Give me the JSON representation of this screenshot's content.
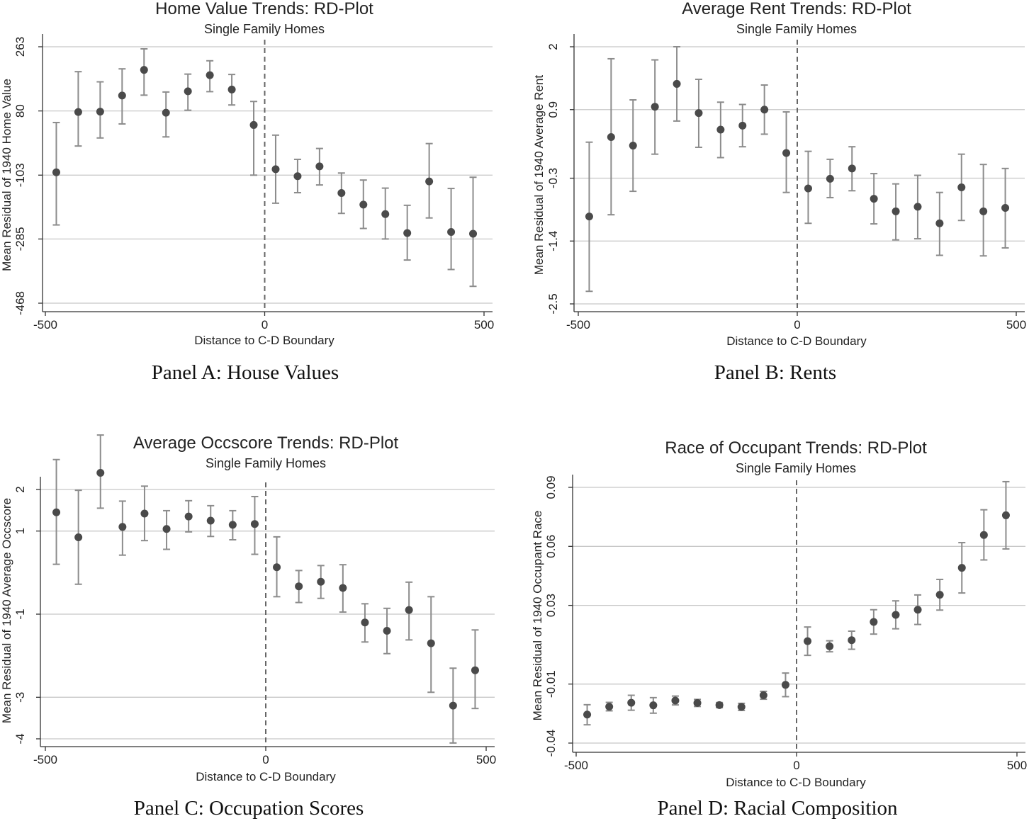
{
  "chart_data": [
    {
      "type": "scatter",
      "panel_caption": "Panel A: House Values",
      "title": "Home Value Trends: RD-Plot",
      "subtitle": "Single Family Homes",
      "xlabel": "Distance to C-D Boundary",
      "ylabel": "Mean Residual of 1940 Home Value",
      "xlim": [
        -500,
        500
      ],
      "ylim": [
        -468,
        263
      ],
      "xticks": [
        -500,
        0,
        500
      ],
      "yticks": [
        263,
        80,
        -103,
        -285,
        -468
      ],
      "cutoff": 0,
      "x": [
        -475,
        -425,
        -375,
        -325,
        -275,
        -225,
        -175,
        -125,
        -75,
        -25,
        25,
        75,
        125,
        175,
        225,
        275,
        325,
        375,
        425,
        475
      ],
      "y": [
        -95,
        77,
        78,
        124,
        197,
        75,
        136,
        182,
        141,
        40,
        -86,
        -106,
        -78,
        -154,
        -187,
        -214,
        -268,
        -121,
        -265,
        -270
      ],
      "ci_low": [
        -245,
        -20,
        3,
        43,
        125,
        6,
        82,
        135,
        97,
        -103,
        -183,
        -153,
        -131,
        -212,
        -255,
        -285,
        -345,
        -225,
        -372,
        -420
      ],
      "ci_high": [
        47,
        192,
        163,
        200,
        257,
        134,
        185,
        223,
        184,
        107,
        11,
        -58,
        -27,
        -97,
        -117,
        -140,
        -189,
        -13,
        -141,
        -109
      ]
    },
    {
      "type": "scatter",
      "panel_caption": "Panel B: Rents",
      "title": "Average Rent Trends: RD-Plot",
      "subtitle": "Single Family Homes",
      "xlabel": "Distance to C-D Boundary",
      "ylabel": "Mean Residual of 1940 Average Rent",
      "xlim": [
        -500,
        500
      ],
      "ylim": [
        -2.5,
        2.0
      ],
      "xticks": [
        -500,
        0,
        500
      ],
      "yticks": [
        2.0,
        0.9,
        -0.3,
        -1.4,
        -2.5
      ],
      "cutoff": 0,
      "x": [
        -475,
        -425,
        -375,
        -325,
        -275,
        -225,
        -175,
        -125,
        -75,
        -25,
        25,
        75,
        125,
        175,
        225,
        275,
        325,
        375,
        425,
        475
      ],
      "y": [
        -0.97,
        0.42,
        0.27,
        0.95,
        1.35,
        0.84,
        0.55,
        0.62,
        0.9,
        0.14,
        -0.48,
        -0.31,
        -0.13,
        -0.66,
        -0.88,
        -0.8,
        -1.09,
        -0.46,
        -0.88,
        -0.82
      ],
      "ci_low": [
        -2.28,
        -0.94,
        -0.53,
        0.12,
        0.7,
        0.24,
        0.06,
        0.25,
        0.47,
        -0.55,
        -1.09,
        -0.64,
        -0.52,
        -1.1,
        -1.38,
        -1.36,
        -1.65,
        -1.04,
        -1.66,
        -1.52
      ],
      "ci_high": [
        0.33,
        1.79,
        1.07,
        1.77,
        2.0,
        1.43,
        1.03,
        0.99,
        1.33,
        0.86,
        0.17,
        0.03,
        0.25,
        -0.22,
        -0.4,
        -0.25,
        -0.55,
        0.12,
        -0.06,
        -0.13
      ]
    },
    {
      "type": "scatter",
      "panel_caption": "Panel C: Occupation Scores",
      "title": "Average Occscore Trends: RD-Plot",
      "subtitle": "Single Family Homes",
      "xlabel": "Distance to C-D Boundary",
      "ylabel": "Mean Residual of 1940 Average Occscore",
      "xlim": [
        -500,
        500
      ],
      "ylim": [
        -4,
        2
      ],
      "xticks": [
        -500,
        0,
        500
      ],
      "yticks": [
        2,
        1,
        -1,
        -3,
        -4
      ],
      "cutoff": 0,
      "x": [
        -475,
        -425,
        -375,
        -325,
        -275,
        -225,
        -175,
        -125,
        -75,
        -25,
        25,
        75,
        125,
        175,
        225,
        275,
        325,
        375,
        425,
        475
      ],
      "y": [
        1.45,
        0.85,
        2.4,
        1.1,
        1.42,
        1.05,
        1.35,
        1.25,
        1.15,
        1.17,
        0.13,
        -0.33,
        -0.22,
        -0.37,
        -1.2,
        -1.4,
        -0.9,
        -1.7,
        -3.2,
        -2.35
      ],
      "ci_low": [
        0.2,
        -0.28,
        1.55,
        0.42,
        0.77,
        0.56,
        0.98,
        0.87,
        0.79,
        0.44,
        -0.58,
        -0.72,
        -0.62,
        -0.95,
        -1.67,
        -1.95,
        -1.62,
        -2.88,
        -4.1,
        -3.27
      ],
      "ci_high": [
        2.72,
        1.98,
        3.31,
        1.72,
        2.08,
        1.49,
        1.73,
        1.61,
        1.49,
        1.83,
        0.86,
        0.05,
        0.17,
        0.19,
        -0.75,
        -0.86,
        -0.23,
        -0.58,
        -2.3,
        -1.38
      ]
    },
    {
      "type": "scatter",
      "panel_caption": "Panel D: Racial Composition",
      "title": "Race of Occupant Trends: RD-Plot",
      "subtitle": "Single Family Homes",
      "xlabel": "Distance to C-D Boundary",
      "ylabel": "Mean Residual of 1940 Occupant Race",
      "xlim": [
        -500,
        500
      ],
      "ylim": [
        -0.04,
        0.09
      ],
      "xticks": [
        -500,
        0,
        500
      ],
      "yticks": [
        0.09,
        0.06,
        0.03,
        -0.01,
        -0.04
      ],
      "yticklabels": [
        "0.09",
        "0.06",
        "0.03",
        "-0.01",
        "-0.04"
      ],
      "cutoff": 0,
      "x": [
        -475,
        -425,
        -375,
        -325,
        -275,
        -225,
        -175,
        -125,
        -75,
        -25,
        25,
        75,
        125,
        175,
        225,
        275,
        325,
        375,
        425,
        475
      ],
      "y": [
        -0.0255,
        -0.0215,
        -0.0195,
        -0.0208,
        -0.0184,
        -0.0196,
        -0.0207,
        -0.0216,
        -0.0157,
        -0.0104,
        0.0118,
        0.0092,
        0.0123,
        0.0216,
        0.0252,
        0.0278,
        0.0354,
        0.0491,
        0.0658,
        0.0758
      ],
      "ci_low": [
        -0.0307,
        -0.0236,
        -0.0233,
        -0.0248,
        -0.0206,
        -0.0214,
        -0.022,
        -0.0234,
        -0.0177,
        -0.0164,
        0.0046,
        0.0064,
        0.0077,
        0.0154,
        0.0181,
        0.0203,
        0.0276,
        0.0363,
        0.0531,
        0.0587
      ],
      "ci_high": [
        -0.0205,
        -0.0193,
        -0.0157,
        -0.0169,
        -0.0161,
        -0.0178,
        -0.0194,
        -0.0198,
        -0.0137,
        -0.0044,
        0.019,
        0.012,
        0.0169,
        0.0278,
        0.0323,
        0.0353,
        0.0432,
        0.0619,
        0.0786,
        0.0929
      ]
    }
  ]
}
